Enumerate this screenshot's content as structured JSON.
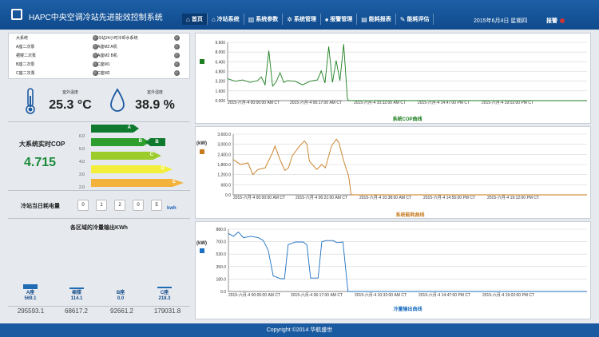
{
  "header": {
    "title": "HAPC中央空调冷站先进能效控制系统",
    "nav": [
      {
        "icon": "house",
        "label": "首页",
        "active": true
      },
      {
        "icon": "house",
        "label": "冷站系统",
        "active": false
      },
      {
        "icon": "bars",
        "label": "系统参数",
        "active": false
      },
      {
        "icon": "gear",
        "label": "系统管理",
        "active": false
      },
      {
        "icon": "bell",
        "label": "报警管理",
        "active": false
      },
      {
        "icon": "chart",
        "label": "能耗报表",
        "active": false
      },
      {
        "icon": "wrench",
        "label": "能耗评估",
        "active": false
      }
    ],
    "date": "2015年6月4日 星期四",
    "alarm_label": "报警",
    "alarm_color": "#d33333"
  },
  "chillers": [
    "大系统",
    "冷站24小时冷却水系统",
    "A座二次泵",
    "A座M2 A机",
    "裙楼二次泵",
    "A座M2 B机",
    "B座二次泵",
    "C座M1",
    "C座二次泵",
    "C座M2"
  ],
  "sensors": {
    "temp": {
      "label": "室外温度",
      "value": "25.3 °C"
    },
    "humidity": {
      "label": "室外湿度",
      "value": "38.9 %"
    }
  },
  "cop": {
    "label": "大系统实时COP",
    "value": "4.715",
    "scale": [
      "6.0",
      "5.0",
      "4.0",
      "3.0",
      "2.0"
    ],
    "bands": [
      {
        "grade": "A",
        "color": "#0f7a2e"
      },
      {
        "grade": "B",
        "color": "#2e9e2e"
      },
      {
        "grade": "C",
        "color": "#9ccc2a"
      },
      {
        "grade": "D",
        "color": "#f2ee3a"
      },
      {
        "grade": "E",
        "color": "#f3b23a"
      }
    ],
    "current_grade": "B"
  },
  "energy": {
    "label": "冷站当日耗电量",
    "digits": [
      "0",
      "1",
      "2",
      "0",
      "5"
    ],
    "unit": "kwh"
  },
  "cold_output": {
    "title": "各区域的冷量输出KWh",
    "zones": [
      {
        "name": "A座",
        "value": "569.1",
        "level": 1.0
      },
      {
        "name": "裙楼",
        "value": "114.1",
        "level": 0.2
      },
      {
        "name": "B座",
        "value": "0.0",
        "level": 0
      },
      {
        "name": "C座",
        "value": "218.3",
        "level": 0.38
      }
    ],
    "totals": [
      "295593.1",
      "68617.2",
      "92661.2",
      "179031.8"
    ]
  },
  "charts": [
    {
      "caption": "系统COP曲线",
      "color": "#1d7f20",
      "unit": "",
      "y_ticks": [
        "9.600",
        "8.000",
        "6.400",
        "4.800",
        "3.200",
        "1.600",
        "0.000"
      ],
      "x_ticks": [
        "2015-六月-4 00:00:00 AM CT",
        "2015-六月-4 06:17:00 AM CT",
        "2015-六月-4 10:32:00 AM CT",
        "2015-六月-4 14:47:00 PM CT",
        "2015-六月-4 19:02:00 PM CT"
      ],
      "chart_data": {
        "type": "line",
        "ylim": [
          0,
          9.6
        ],
        "x": [
          "00:00",
          "00:30",
          "01:00",
          "01:30",
          "02:00",
          "02:15",
          "02:30",
          "02:45",
          "03:00",
          "03:15",
          "03:30",
          "03:45",
          "04:00",
          "04:30",
          "05:00",
          "05:30",
          "06:00",
          "06:15",
          "06:30",
          "06:45",
          "07:00",
          "07:15",
          "07:30",
          "07:45",
          "08:00",
          "08:05",
          "08:30",
          "24:00"
        ],
        "y": [
          3.6,
          3.2,
          3.4,
          3.0,
          3.3,
          3.9,
          2.6,
          8.2,
          2.4,
          3.1,
          4.6,
          3.0,
          3.3,
          3.2,
          2.6,
          3.2,
          3.4,
          4.9,
          2.9,
          8.9,
          3.0,
          6.6,
          3.3,
          9.3,
          0.3,
          0.0,
          0.0,
          0.0
        ]
      }
    },
    {
      "caption": "系统能耗曲线",
      "color": "#c77a1e",
      "unit": "(kW)",
      "y_ticks": [
        "3,600.0",
        "3,000.0",
        "2,400.0",
        "1,800.0",
        "1,200.0",
        "600.0",
        "0.0"
      ],
      "x_ticks": [
        "2015-六月-4 00:00:00 AM CT",
        "2015-六月-4 06:21:00 AM CT",
        "2015-六月-4 10:38:00 AM CT",
        "2015-六月-4 14:55:00 PM CT",
        "2015-六月-4 19:12:00 PM CT"
      ],
      "chart_data": {
        "type": "line",
        "ylim": [
          0,
          3600
        ],
        "x": [
          "00:00",
          "00:30",
          "01:00",
          "01:20",
          "01:40",
          "02:10",
          "02:40",
          "02:50",
          "03:10",
          "03:30",
          "03:45",
          "04:00",
          "04:30",
          "04:50",
          "05:00",
          "05:10",
          "05:40",
          "06:00",
          "06:15",
          "06:40",
          "07:00",
          "07:10",
          "07:30",
          "07:50",
          "08:00",
          "08:30",
          "24:00"
        ],
        "y": [
          2100,
          1800,
          1900,
          1200,
          1500,
          1600,
          2500,
          2900,
          2100,
          1450,
          1600,
          2300,
          2900,
          3200,
          3000,
          2000,
          1500,
          1800,
          1600,
          2900,
          3300,
          3100,
          2000,
          1100,
          0,
          0,
          0
        ]
      }
    },
    {
      "caption": "冷量输出曲线",
      "color": "#1c6fc1",
      "unit": "(kW)",
      "y_ticks": [
        "880.0",
        "700.0",
        "530.0",
        "350.0",
        "180.0",
        "0.0"
      ],
      "x_ticks": [
        "2015-六月-4 00:00:00 AM CT",
        "2015-六月-4 06:17:00 AM CT",
        "2015-六月-4 10:32:00 AM CT",
        "2015-六月-4 14:47:00 PM CT",
        "2015-六月-4 19:02:00 PM CT"
      ],
      "chart_data": {
        "type": "line",
        "ylim": [
          0,
          880
        ],
        "x": [
          "00:00",
          "00:20",
          "00:40",
          "01:00",
          "01:30",
          "02:00",
          "02:20",
          "02:40",
          "03:00",
          "03:30",
          "03:45",
          "04:00",
          "04:30",
          "05:00",
          "05:15",
          "05:30",
          "06:00",
          "06:15",
          "06:30",
          "07:00",
          "07:15",
          "07:40",
          "08:00",
          "08:30",
          "24:00"
        ],
        "y": [
          820,
          780,
          840,
          760,
          780,
          760,
          720,
          580,
          220,
          180,
          180,
          660,
          700,
          700,
          660,
          190,
          190,
          700,
          720,
          720,
          690,
          700,
          0,
          0,
          0
        ]
      }
    }
  ]
}
